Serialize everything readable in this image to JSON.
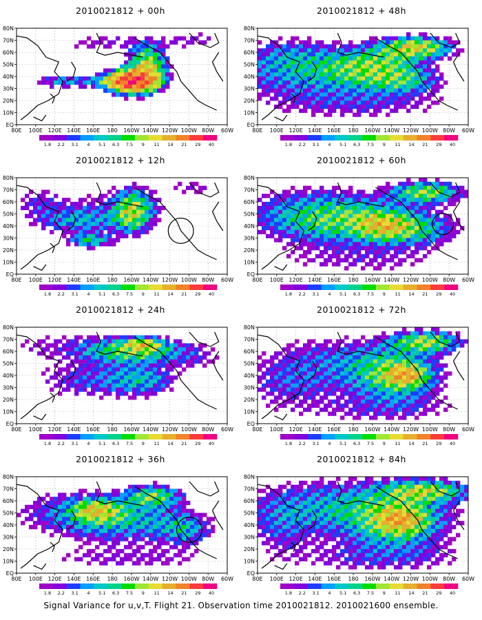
{
  "caption": "Signal Variance for u,v,T. Flight 21. Observation time 2010021812. 2010021600 ensemble.",
  "colorbar": {
    "levels": [
      "1.8",
      "2.2",
      "3.1",
      "4",
      "5.1",
      "6.3",
      "7.5",
      "9",
      "11",
      "14",
      "21",
      "29",
      "40"
    ],
    "colors": [
      "#a000c8",
      "#8200dc",
      "#1e3cff",
      "#00a0ff",
      "#00c8c8",
      "#00d28c",
      "#00dc00",
      "#a0e632",
      "#e6dc32",
      "#e6af2d",
      "#f08228",
      "#fa3c3c",
      "#f00082"
    ]
  },
  "chart_data": [
    {
      "type": "heatmap",
      "title": "2010021812 + 00h",
      "lead_hours": 0,
      "xticks": [
        "80E",
        "100E",
        "120E",
        "140E",
        "160E",
        "180",
        "160W",
        "140W",
        "120W",
        "100W",
        "80W",
        "60W"
      ],
      "yticks": [
        "EQ",
        "10N",
        "20N",
        "30N",
        "40N",
        "50N",
        "60N",
        "70N",
        "80N"
      ],
      "variance_max": 40
    },
    {
      "type": "heatmap",
      "title": "2010021812 + 48h",
      "lead_hours": 48,
      "xticks": [
        "80E",
        "100E",
        "120E",
        "140E",
        "160E",
        "180",
        "160W",
        "140W",
        "120W",
        "100W",
        "80W",
        "60W"
      ],
      "yticks": [
        "EQ",
        "10N",
        "20N",
        "30N",
        "40N",
        "50N",
        "60N",
        "70N",
        "80N"
      ],
      "variance_max": 14
    },
    {
      "type": "heatmap",
      "title": "2010021812 + 12h",
      "lead_hours": 12,
      "xticks": [
        "80E",
        "100E",
        "120E",
        "140E",
        "160E",
        "180",
        "160W",
        "140W",
        "120W",
        "100W",
        "80W",
        "60W"
      ],
      "yticks": [
        "EQ",
        "10N",
        "20N",
        "30N",
        "40N",
        "50N",
        "60N",
        "70N",
        "80N"
      ],
      "variance_max": 11
    },
    {
      "type": "heatmap",
      "title": "2010021812 + 60h",
      "lead_hours": 60,
      "xticks": [
        "80E",
        "100E",
        "120E",
        "140E",
        "160E",
        "180",
        "160W",
        "140W",
        "120W",
        "100W",
        "80W",
        "60W"
      ],
      "yticks": [
        "EQ",
        "10N",
        "20N",
        "30N",
        "40N",
        "50N",
        "60N",
        "70N",
        "80N"
      ],
      "variance_max": 14
    },
    {
      "type": "heatmap",
      "title": "2010021812 + 24h",
      "lead_hours": 24,
      "xticks": [
        "80E",
        "100E",
        "120E",
        "140E",
        "160E",
        "180",
        "160W",
        "140W",
        "120W",
        "100W",
        "80W",
        "60W"
      ],
      "yticks": [
        "EQ",
        "10N",
        "20N",
        "30N",
        "40N",
        "50N",
        "60N",
        "70N",
        "80N"
      ],
      "variance_max": 11
    },
    {
      "type": "heatmap",
      "title": "2010021812 + 72h",
      "lead_hours": 72,
      "xticks": [
        "80E",
        "100E",
        "120E",
        "140E",
        "160E",
        "180",
        "160W",
        "140W",
        "120W",
        "100W",
        "80W",
        "60W"
      ],
      "yticks": [
        "EQ",
        "10N",
        "20N",
        "30N",
        "40N",
        "50N",
        "60N",
        "70N",
        "80N"
      ],
      "variance_max": 14
    },
    {
      "type": "heatmap",
      "title": "2010021812 + 36h",
      "lead_hours": 36,
      "xticks": [
        "80E",
        "100E",
        "120E",
        "140E",
        "160E",
        "180",
        "160W",
        "140W",
        "120W",
        "100W",
        "80W",
        "60W"
      ],
      "yticks": [
        "EQ",
        "10N",
        "20N",
        "30N",
        "40N",
        "50N",
        "60N",
        "70N",
        "80N"
      ],
      "variance_max": 11
    },
    {
      "type": "heatmap",
      "title": "2010021812 + 84h",
      "lead_hours": 84,
      "xticks": [
        "80E",
        "100E",
        "120E",
        "140E",
        "160E",
        "180",
        "160W",
        "140W",
        "120W",
        "100W",
        "80W",
        "60W"
      ],
      "yticks": [
        "EQ",
        "10N",
        "20N",
        "30N",
        "40N",
        "50N",
        "60N",
        "70N",
        "80N"
      ],
      "variance_max": 14
    }
  ]
}
